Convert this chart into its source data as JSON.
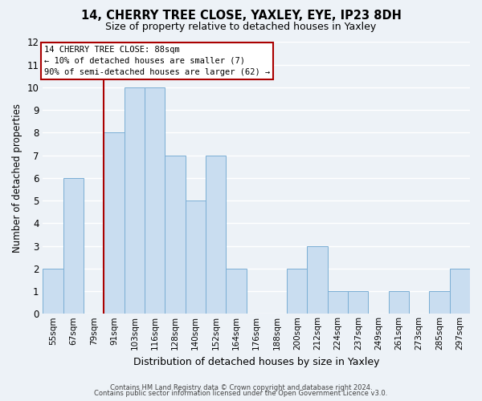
{
  "title": "14, CHERRY TREE CLOSE, YAXLEY, EYE, IP23 8DH",
  "subtitle": "Size of property relative to detached houses in Yaxley",
  "xlabel": "Distribution of detached houses by size in Yaxley",
  "ylabel": "Number of detached properties",
  "bin_labels": [
    "55sqm",
    "67sqm",
    "79sqm",
    "91sqm",
    "103sqm",
    "116sqm",
    "128sqm",
    "140sqm",
    "152sqm",
    "164sqm",
    "176sqm",
    "188sqm",
    "200sqm",
    "212sqm",
    "224sqm",
    "237sqm",
    "249sqm",
    "261sqm",
    "273sqm",
    "285sqm",
    "297sqm"
  ],
  "bar_heights": [
    2,
    6,
    0,
    8,
    10,
    10,
    7,
    5,
    7,
    2,
    0,
    0,
    2,
    3,
    1,
    1,
    0,
    1,
    0,
    1,
    2
  ],
  "bar_color": "#c9ddf0",
  "bar_edge_color": "#7aaed4",
  "ylim": [
    0,
    12
  ],
  "yticks": [
    0,
    1,
    2,
    3,
    4,
    5,
    6,
    7,
    8,
    9,
    10,
    11,
    12
  ],
  "property_line_label": "14 CHERRY TREE CLOSE: 88sqm",
  "annotation_line1": "← 10% of detached houses are smaller (7)",
  "annotation_line2": "90% of semi-detached houses are larger (62) →",
  "footer_line1": "Contains HM Land Registry data © Crown copyright and database right 2024.",
  "footer_line2": "Contains public sector information licensed under the Open Government Licence v3.0.",
  "background_color": "#edf2f7",
  "grid_color": "#ffffff",
  "line_color": "#aa0000"
}
